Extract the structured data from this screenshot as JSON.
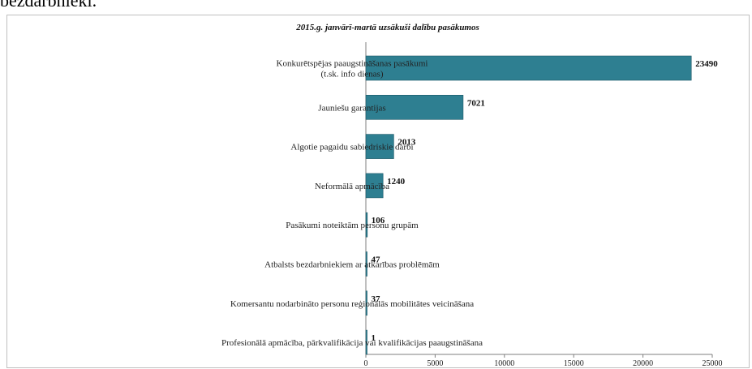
{
  "page": {
    "top_text": "bezdarbnieki."
  },
  "chart_data": {
    "type": "bar",
    "orientation": "horizontal",
    "title": "2015.g. janvārī-martā uzsākuši dalību pasākumos",
    "categories": [
      [
        "Konkurētspējas paaugstināšanas pasākumi",
        "(t.sk. info dienas)"
      ],
      [
        "Jauniešu garantijas"
      ],
      [
        "Algotie pagaidu sabiedriskie darbi"
      ],
      [
        "Neformālā apmācība"
      ],
      [
        "Pasākumi noteiktām personu grupām"
      ],
      [
        "Atbalsts bezdarbniekiem ar atkarības problēmām"
      ],
      [
        "Komersantu nodarbināto personu reģionālās mobilitātes veicināšana"
      ],
      [
        "Profesionālā apmācība, pārkvalifikācija vai kvalifikācijas paaugstināšana"
      ]
    ],
    "values": [
      23490,
      7021,
      2013,
      1240,
      106,
      47,
      37,
      1
    ],
    "value_labels": [
      "23490",
      "7021",
      "2013",
      "1240",
      "106",
      "47",
      "37",
      "1"
    ],
    "xlim": [
      0,
      25000
    ],
    "xticks": [
      0,
      5000,
      10000,
      15000,
      20000,
      25000
    ],
    "xtick_labels": [
      "0",
      "5000",
      "10000",
      "15000",
      "20000",
      "25000"
    ],
    "xlabel": "",
    "ylabel": "",
    "grid": false,
    "legend": "none",
    "bar_color": "#2e7f91",
    "bar_edge_color": "#1c5866"
  }
}
